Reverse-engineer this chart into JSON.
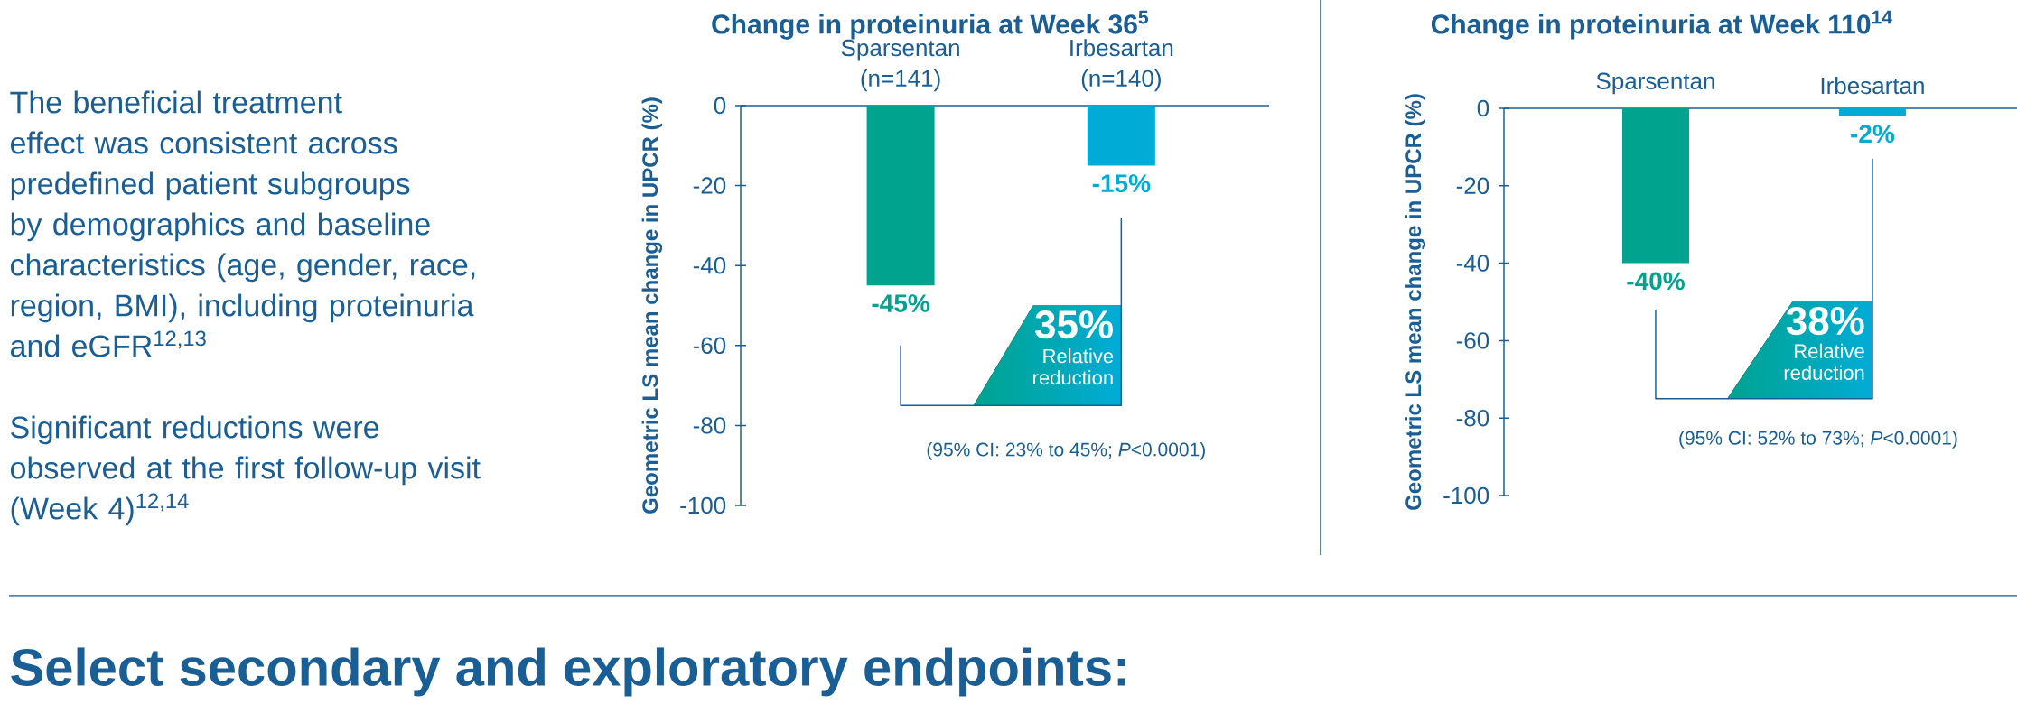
{
  "chart_data": [
    {
      "type": "other",
      "annotations": [
        "The beneficial treatment effect was consistent across predefined patient subgroups by demographics and baseline characteristics (age, gender, race, region, BMI), including proteinuria and eGFR$^{12,13}$",
        "Significant reductions were observed at the first follow-up visit (Week 4)$^{12,14}$"
      ]
    },
    {
      "type": "bar",
      "title": "Change in proteinuria at Week 36$^{5}$",
      "ylabel": "Geometric LS mean change in UPCR (%)",
      "categories": [
        "Sparsentan (n=141)",
        "Irbesartan (n=140)"
      ],
      "values": [
        -45,
        -15
      ],
      "colors": [
        "#00a38e",
        "#00acd6"
      ],
      "value_labels": [
        "-45%",
        "-15%"
      ],
      "ylim": [
        -100,
        0
      ],
      "yticks": [
        0,
        -20,
        -40,
        -60,
        -80,
        -100
      ],
      "annotations": [
        "35%",
        "Relative reduction",
        "(95% CI: 23% to 45%; *P*<0.0001)"
      ]
    },
    {
      "type": "bar",
      "title": "Change in proteinuria at Week 110$^{14}$",
      "ylabel": "Geometric LS mean change in UPCR (%)",
      "categories": [
        "Sparsentan",
        "Irbesartan"
      ],
      "values": [
        -40,
        -2
      ],
      "colors": [
        "#00a38e",
        "#00acd6"
      ],
      "value_labels": [
        "-40%",
        "-2%"
      ],
      "ylim": [
        -100,
        0
      ],
      "yticks": [
        0,
        -20,
        -40,
        -60,
        -80,
        -100
      ],
      "annotations": [
        "38%",
        "Relative reduction",
        "(95% CI: 52% to 73%; *P*<0.0001)"
      ]
    },
    {
      "type": "other",
      "title": "Select secondary and exploratory endpoints:"
    }
  ]
}
